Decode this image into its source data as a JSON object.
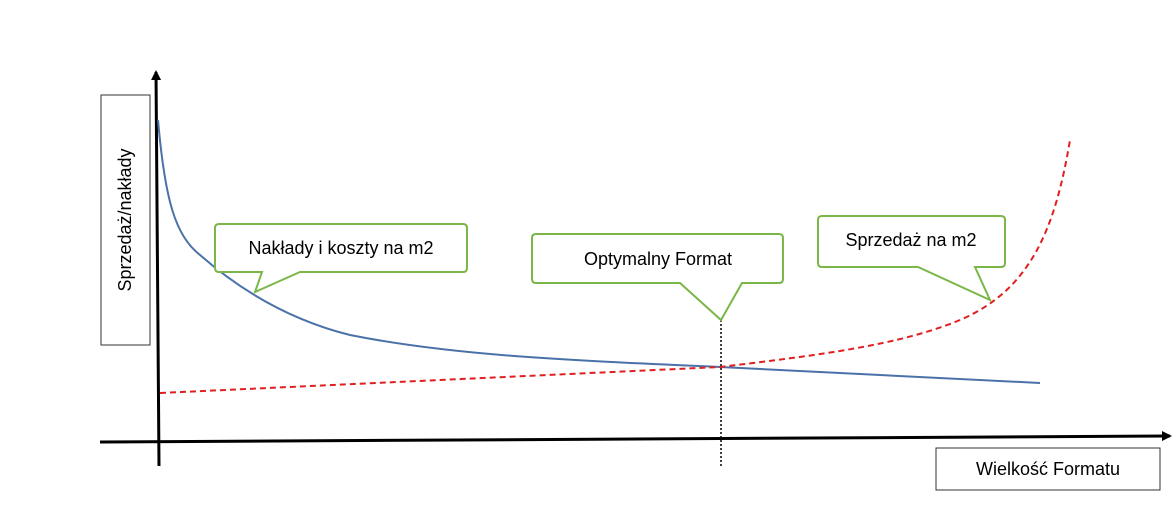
{
  "y_axis_label": "Sprzedaż/nakłady",
  "x_axis_label": "Wielkość Formatu",
  "callouts": [
    {
      "label": "Nakłady i koszty na m2"
    },
    {
      "label": "Optymalny Format"
    },
    {
      "label": "Sprzedaż na m2"
    }
  ]
}
